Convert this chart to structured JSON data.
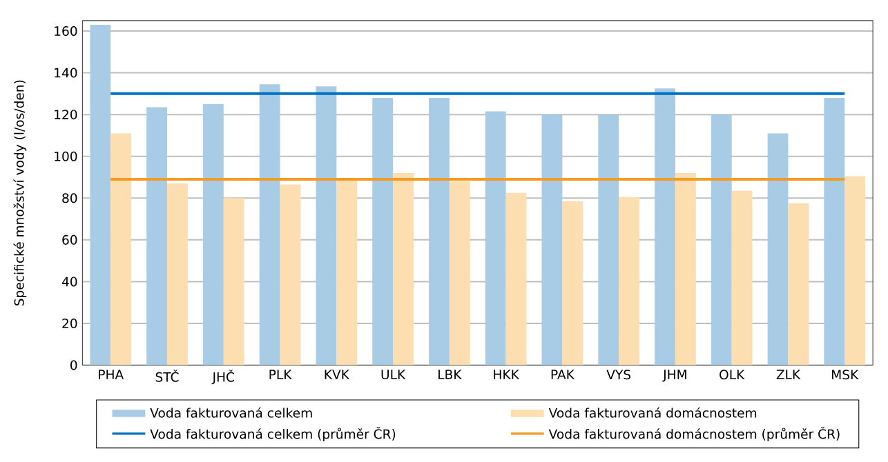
{
  "chart_data": {
    "type": "bar",
    "ylabel": "Specifické množství vody (l/os/den)",
    "categories": [
      "PHA",
      "STČ",
      "JHČ",
      "PLK",
      "KVK",
      "ULK",
      "LBK",
      "HKK",
      "PAK",
      "VYS",
      "JHM",
      "OLK",
      "ZLK",
      "MSK"
    ],
    "series": [
      {
        "name": "Voda fakturovaná celkem",
        "color": "#a9cce6",
        "values": [
          163,
          123.5,
          125,
          134.5,
          133.5,
          128,
          128,
          121.5,
          120,
          120,
          132.5,
          120,
          111,
          128
        ]
      },
      {
        "name": "Voda fakturovaná domácnostem",
        "color": "#fcdeb1",
        "values": [
          111,
          87,
          80,
          86.5,
          89,
          92,
          88,
          82.5,
          78.5,
          80.5,
          92,
          83.5,
          77.5,
          90.5
        ]
      },
      {
        "name": "Voda fakturovaná celkem (průměr ČR)",
        "type": "line",
        "color": "#0070c0",
        "values": [
          130,
          130,
          130,
          130,
          130,
          130,
          130,
          130,
          130,
          130,
          130,
          130,
          130,
          130
        ]
      },
      {
        "name": "Voda fakturovaná domácnostem (průměr ČR)",
        "type": "line",
        "color": "#f59a23",
        "values": [
          89,
          89,
          89,
          89,
          89,
          89,
          89,
          89,
          89,
          89,
          89,
          89,
          89,
          89
        ]
      }
    ],
    "ylim": [
      0,
      165
    ],
    "yticks": [
      0,
      20,
      40,
      60,
      80,
      100,
      120,
      140,
      160
    ],
    "grid": "y",
    "legend": "bottom"
  }
}
